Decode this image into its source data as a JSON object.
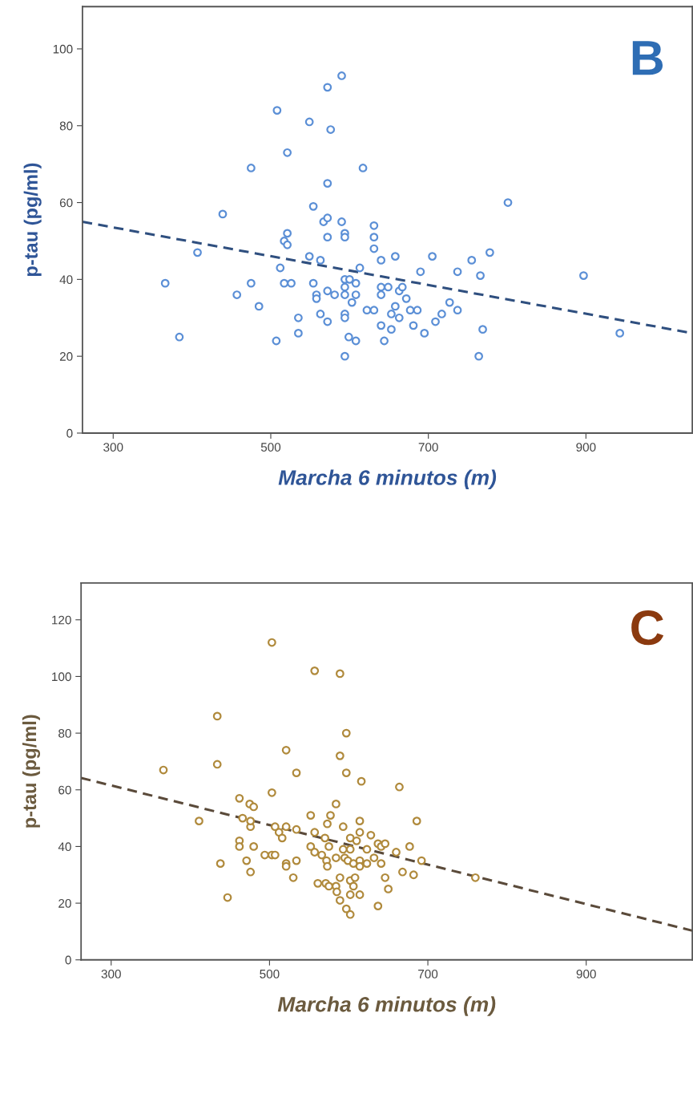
{
  "chart_data": [
    {
      "type": "scatter",
      "xlabel": "Marcha 6 minutos (m)",
      "ylabel": "p-tau (pg/ml)",
      "annotations": [
        "B"
      ],
      "xlim": [
        261,
        1035
      ],
      "ylim": [
        0,
        111
      ],
      "xticks": [
        300,
        500,
        700,
        900
      ],
      "yticks": [
        0,
        20,
        40,
        60,
        80,
        100
      ],
      "grid": false,
      "legend": false,
      "marker": "circle",
      "series": [
        {
          "color": "#5b8fd6",
          "x": [
            366,
            384,
            407,
            439,
            457,
            475,
            475,
            485,
            508,
            507,
            512,
            517,
            521,
            521,
            521,
            517,
            526,
            535,
            535,
            549,
            549,
            554,
            554,
            558,
            558,
            563,
            563,
            567,
            572,
            572,
            572,
            572,
            572,
            572,
            576,
            581,
            590,
            590,
            594,
            594,
            594,
            594,
            594,
            594,
            594,
            594,
            599,
            600,
            603,
            608,
            608,
            608,
            613,
            617,
            622,
            631,
            631,
            631,
            631,
            640,
            640,
            640,
            640,
            644,
            649,
            653,
            653,
            658,
            658,
            663,
            663,
            667,
            672,
            677,
            681,
            686,
            690,
            695,
            705,
            709,
            717,
            727,
            737,
            737,
            755,
            764,
            766,
            769,
            778,
            801,
            897,
            943
          ],
          "values": [
            39,
            25,
            47,
            57,
            36,
            69,
            39,
            33,
            84,
            24,
            43,
            50,
            52,
            49,
            73,
            39,
            39,
            30,
            26,
            81,
            46,
            59,
            39,
            36,
            35,
            45,
            31,
            55,
            56,
            51,
            65,
            90,
            29,
            37,
            79,
            36,
            93,
            55,
            52,
            51,
            40,
            38,
            36,
            31,
            30,
            20,
            25,
            40,
            34,
            39,
            36,
            24,
            43,
            69,
            32,
            32,
            54,
            51,
            48,
            45,
            38,
            36,
            28,
            24,
            38,
            31,
            27,
            33,
            46,
            30,
            37,
            38,
            35,
            32,
            28,
            32,
            42,
            26,
            46,
            29,
            31,
            34,
            42,
            32,
            45,
            20,
            41,
            27,
            47,
            60,
            41,
            26
          ]
        },
        {
          "type": "line",
          "color": "#2f4f7f",
          "line_style": "dashed",
          "marker": "none",
          "x": [
            261,
            1035
          ],
          "values": [
            55,
            26
          ]
        }
      ]
    },
    {
      "type": "scatter",
      "xlabel": "Marcha 6 minutos (m)",
      "ylabel": "p-tau (pg/ml)",
      "annotations": [
        "C"
      ],
      "xlim": [
        262,
        1034
      ],
      "ylim": [
        0,
        133
      ],
      "xticks": [
        300,
        500,
        700,
        900
      ],
      "yticks": [
        0,
        20,
        40,
        60,
        80,
        100,
        120
      ],
      "grid": false,
      "legend": false,
      "marker": "circle",
      "series": [
        {
          "color": "#b08a3c",
          "x": [
            366,
            411,
            434,
            434,
            438,
            447,
            462,
            462,
            462,
            466,
            471,
            475,
            476,
            476,
            476,
            480,
            480,
            494,
            503,
            503,
            503,
            507,
            507,
            512,
            516,
            521,
            521,
            521,
            521,
            530,
            534,
            534,
            534,
            552,
            552,
            557,
            557,
            557,
            561,
            566,
            570,
            571,
            572,
            573,
            573,
            575,
            575,
            577,
            584,
            584,
            584,
            585,
            589,
            589,
            589,
            589,
            593,
            593,
            595,
            597,
            597,
            597,
            599,
            602,
            602,
            602,
            602,
            602,
            606,
            606,
            608,
            610,
            614,
            614,
            614,
            614,
            614,
            616,
            623,
            623,
            628,
            632,
            637,
            637,
            641,
            641,
            646,
            646,
            650,
            660,
            664,
            668,
            677,
            682,
            686,
            692,
            760
          ],
          "values": [
            67,
            49,
            69,
            86,
            34,
            22,
            57,
            42,
            40,
            50,
            35,
            55,
            47,
            49,
            31,
            54,
            40,
            37,
            59,
            112,
            37,
            37,
            47,
            45,
            43,
            74,
            47,
            34,
            33,
            29,
            66,
            35,
            46,
            51,
            40,
            102,
            45,
            38,
            27,
            37,
            43,
            27,
            35,
            33,
            48,
            40,
            26,
            51,
            55,
            36,
            26,
            24,
            101,
            72,
            29,
            21,
            47,
            39,
            36,
            80,
            66,
            18,
            35,
            43,
            28,
            23,
            16,
            39,
            34,
            26,
            29,
            42,
            49,
            45,
            35,
            33,
            23,
            63,
            34,
            39,
            44,
            36,
            41,
            19,
            40,
            34,
            41,
            29,
            25,
            38,
            61,
            31,
            40,
            30,
            49,
            35,
            29
          ]
        },
        {
          "type": "line",
          "color": "#5a4a3a",
          "line_style": "dashed",
          "marker": "none",
          "x": [
            262,
            1034
          ],
          "values": [
            64.2,
            10.3
          ]
        }
      ]
    }
  ]
}
